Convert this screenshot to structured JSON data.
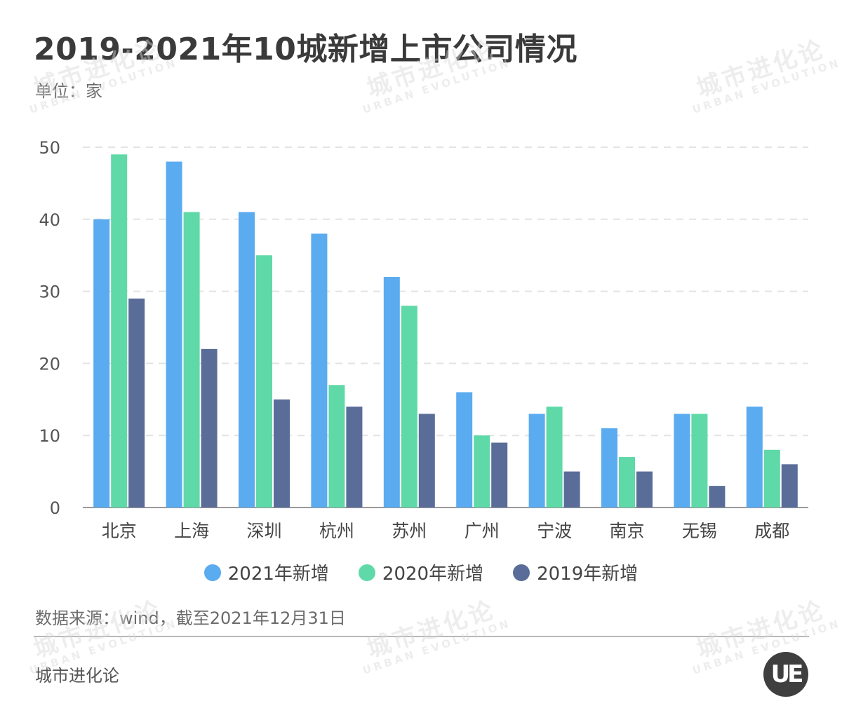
{
  "title": "2019-2021年10城新增上市公司情况",
  "unit": "单位：家",
  "source": "数据来源：wind，截至2021年12月31日",
  "brand": "城市进化论",
  "logo_text": "UE",
  "watermark": {
    "cn": "城市进化论",
    "en": "URBAN EVOLUTION"
  },
  "colors": {
    "series_2021": "#5aabf0",
    "series_2020": "#5fd9a8",
    "series_2019": "#5a6d98",
    "grid": "#e3e3e3",
    "axis": "#9a9a9a"
  },
  "chart_data": {
    "type": "bar",
    "title": "2019-2021年10城新增上市公司情况",
    "ylabel": "单位：家",
    "xlabel": "",
    "ylim": [
      0,
      50
    ],
    "yticks": [
      0,
      10,
      20,
      30,
      40,
      50
    ],
    "grid": true,
    "legend_position": "bottom",
    "categories": [
      "北京",
      "上海",
      "深圳",
      "杭州",
      "苏州",
      "广州",
      "宁波",
      "南京",
      "无锡",
      "成都"
    ],
    "series": [
      {
        "name": "2021年新增",
        "color": "#5aabf0",
        "values": [
          40,
          48,
          41,
          38,
          32,
          16,
          13,
          11,
          13,
          14
        ]
      },
      {
        "name": "2020年新增",
        "color": "#5fd9a8",
        "values": [
          49,
          41,
          35,
          17,
          28,
          10,
          14,
          7,
          13,
          8
        ]
      },
      {
        "name": "2019年新增",
        "color": "#5a6d98",
        "values": [
          29,
          22,
          15,
          14,
          13,
          9,
          5,
          5,
          3,
          6
        ]
      }
    ]
  }
}
